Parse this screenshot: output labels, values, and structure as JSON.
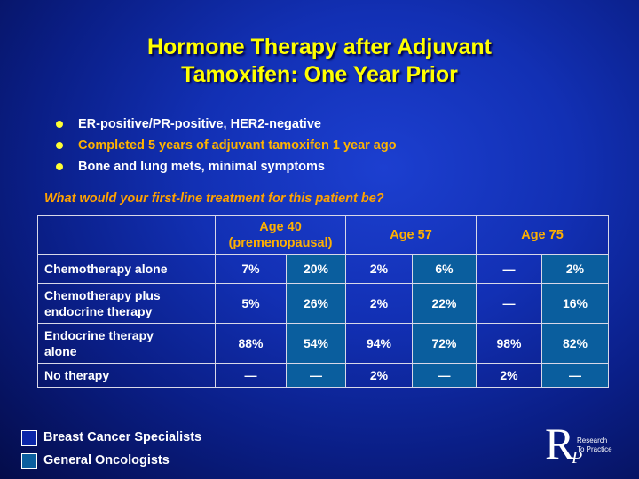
{
  "slide": {
    "title_line1": "Hormone Therapy after Adjuvant",
    "title_line2": "Tamoxifen: One Year Prior",
    "bullets": [
      "ER-positive/PR-positive, HER2-negative",
      "Completed 5 years of adjuvant tamoxifen 1 year ago",
      "Bone and lung mets, minimal symptoms"
    ],
    "question": "What would your first-line treatment for this patient be?"
  },
  "table": {
    "headers": [
      "Age 40 (premenopausal)",
      "Age 57",
      "Age 75"
    ],
    "header_age40_line1": "Age 40",
    "header_age40_line2": "(premenopausal)",
    "rows": [
      {
        "label": "Chemotherapy alone",
        "values": [
          "7%",
          "20%",
          "2%",
          "6%",
          "—",
          "2%"
        ]
      },
      {
        "label_line1": "Chemotherapy plus",
        "label_line2": "endocrine therapy",
        "values": [
          "5%",
          "26%",
          "2%",
          "22%",
          "—",
          "16%"
        ]
      },
      {
        "label_line1": "Endocrine therapy",
        "label_line2": "alone",
        "values": [
          "88%",
          "54%",
          "94%",
          "72%",
          "98%",
          "82%"
        ]
      },
      {
        "label": "No therapy",
        "values": [
          "—",
          "—",
          "2%",
          "—",
          "2%",
          "—"
        ]
      }
    ]
  },
  "legend": {
    "items": [
      {
        "label": "Breast Cancer Specialists",
        "color": "#0b26a8"
      },
      {
        "label": "General Oncologists",
        "color": "#0a5e9e"
      }
    ]
  },
  "logo": {
    "letter_r": "R",
    "letter_p": "P",
    "line1": "Research",
    "line2": "To Practice"
  },
  "colors": {
    "title": "#ffff00",
    "highlight": "#ffb300",
    "question": "#ffa200",
    "general_oncologists_cell": "#0a5e9e"
  }
}
